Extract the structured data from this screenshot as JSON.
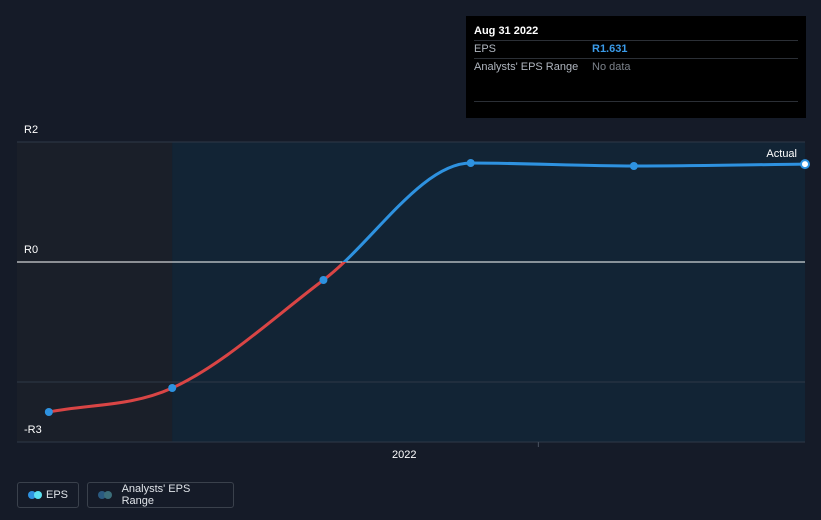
{
  "tooltip": {
    "date": "Aug 31 2022",
    "eps_label": "EPS",
    "eps_value": "R1.631",
    "range_label": "Analysts' EPS Range",
    "range_value": "No data"
  },
  "actual_label": "Actual",
  "legend": {
    "eps": "EPS",
    "range": "Analysts' EPS Range"
  },
  "colors": {
    "background": "#151b28",
    "past_region": "#1a1f29",
    "forecast_region": "#122435",
    "eps_positive": "#2e92e0",
    "eps_negative": "#d94545",
    "point": "#2e92e0",
    "legend_eps_dot_a": "#2e92e0",
    "legend_eps_dot_b": "#5ce0f0",
    "legend_range_dot_a": "#2a5a80",
    "legend_range_dot_b": "#3b6e7a"
  },
  "chart_data": {
    "type": "line",
    "title": "",
    "xlabel": "",
    "ylabel": "",
    "ylim": [
      -3,
      2
    ],
    "y_ticks": [
      {
        "value": 2,
        "label": "R2"
      },
      {
        "value": 0,
        "label": "R0"
      },
      {
        "value": -3,
        "label": "-R3"
      }
    ],
    "x_range": [
      2020.69,
      2022.67
    ],
    "x_ticks": [
      {
        "value": 2022.0,
        "label": "2022"
      }
    ],
    "shaded_start": 2021.08,
    "series": [
      {
        "name": "EPS",
        "x": [
          2020.77,
          2021.08,
          2021.46,
          2021.83,
          2022.24,
          2022.67
        ],
        "values": [
          -2.5,
          -2.1,
          -0.3,
          1.65,
          1.6,
          1.631
        ]
      }
    ],
    "highlight_index": 5
  }
}
